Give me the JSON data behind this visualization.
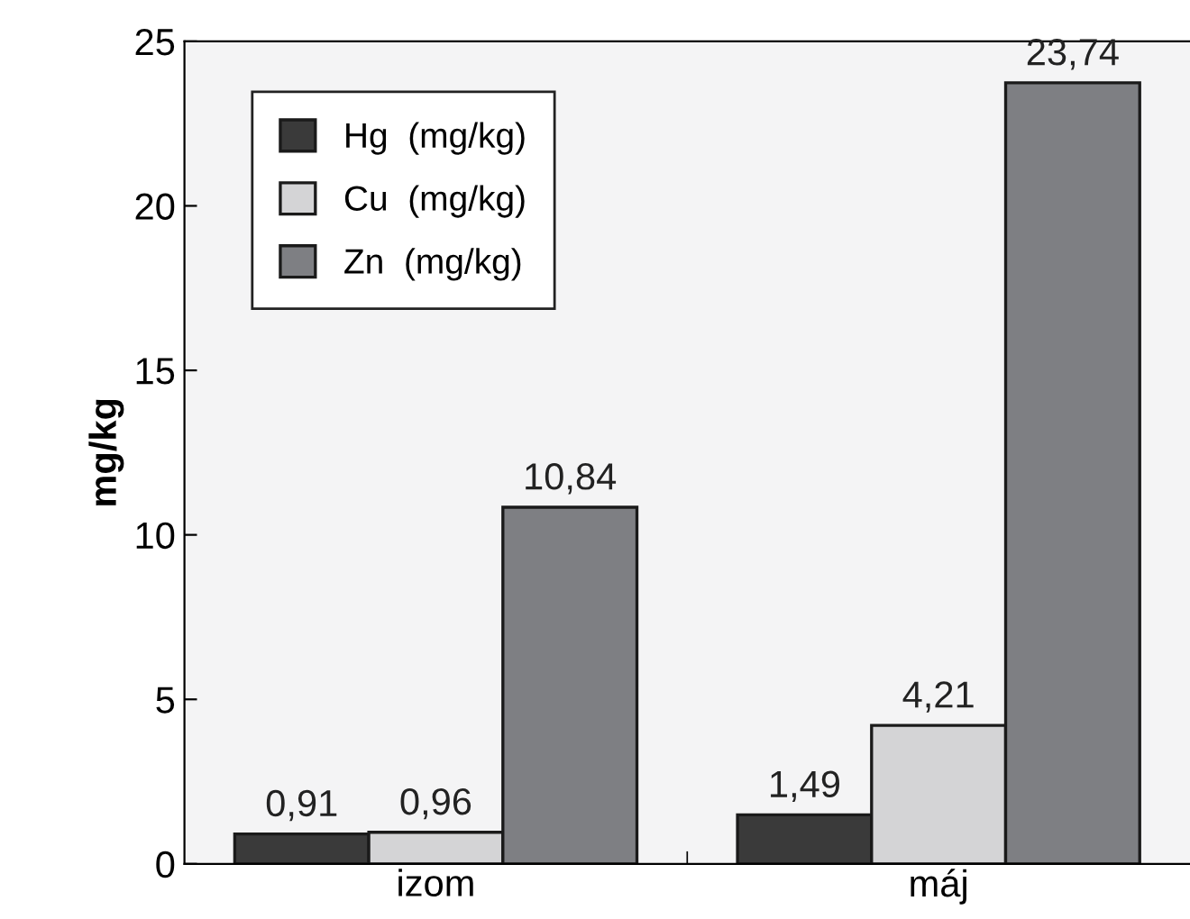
{
  "chart_data": {
    "type": "bar",
    "ylabel": "mg/kg",
    "categories": [
      "izom",
      "máj"
    ],
    "series": [
      {
        "name": "Hg  (mg/kg)",
        "color": "#3a3a3a",
        "values": [
          0.91,
          1.49
        ],
        "value_labels": [
          "0,91",
          "1,49"
        ]
      },
      {
        "name": "Cu  (mg/kg)",
        "color": "#d4d4d6",
        "values": [
          0.96,
          4.21
        ],
        "value_labels": [
          "0,96",
          "4,21"
        ]
      },
      {
        "name": "Zn  (mg/kg)",
        "color": "#7e7f83",
        "values": [
          10.84,
          23.74
        ],
        "value_labels": [
          "10,84",
          "23,74"
        ]
      }
    ],
    "ylim": [
      0,
      25
    ],
    "yticks": [
      0,
      5,
      10,
      15,
      20,
      25
    ],
    "grid": false,
    "legend": "top left"
  }
}
